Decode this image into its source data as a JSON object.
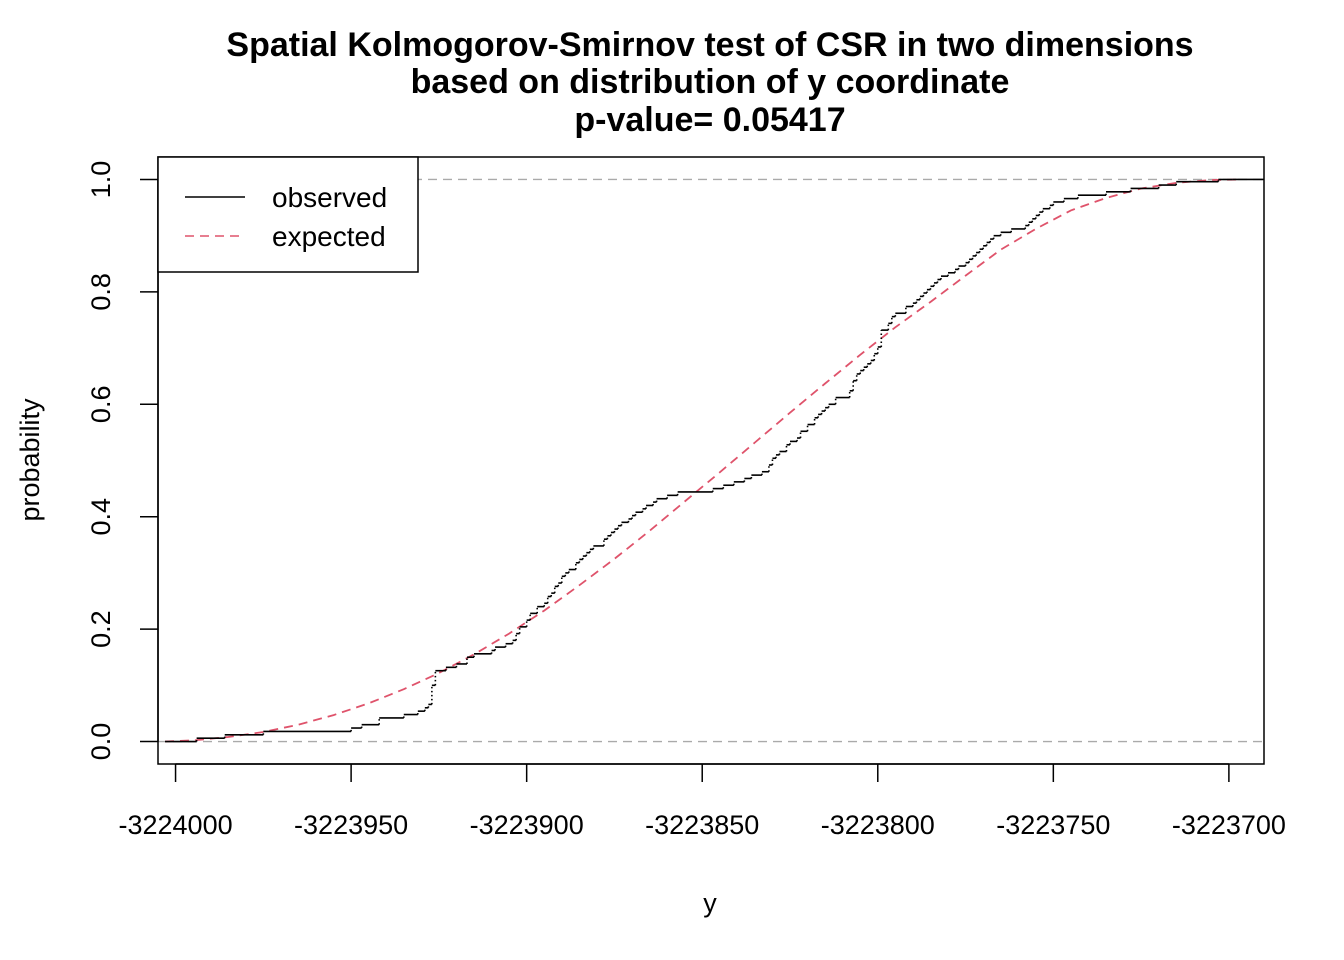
{
  "chart_data": {
    "type": "line",
    "title_lines": [
      "Spatial Kolmogorov-Smirnov test of CSR in two dimensions",
      "based on distribution of y coordinate",
      "p-value= 0.05417"
    ],
    "xlabel": "y",
    "ylabel": "probability",
    "xlim": [
      -3224005,
      -3223690
    ],
    "ylim": [
      -0.04,
      1.04
    ],
    "x_ticks": [
      -3224000,
      -3223950,
      -3223900,
      -3223850,
      -3223800,
      -3223750,
      -3223700
    ],
    "x_tick_labels": [
      "-3224000",
      "-3223950",
      "-3223900",
      "-3223850",
      "-3223800",
      "-3223750",
      "-3223700"
    ],
    "y_ticks": [
      0.0,
      0.2,
      0.4,
      0.6,
      0.8,
      1.0
    ],
    "y_tick_labels": [
      "0.0",
      "0.2",
      "0.4",
      "0.6",
      "0.8",
      "1.0"
    ],
    "reference_lines": [
      0,
      1
    ],
    "colors": {
      "observed": "#000000",
      "expected": "#DF536B",
      "reference": "#AAAAAA"
    },
    "legend": {
      "placement": "top-left",
      "entries": [
        {
          "label": "observed",
          "style": "solid"
        },
        {
          "label": "expected",
          "style": "dashed"
        }
      ]
    },
    "series": [
      {
        "name": "observed",
        "style": "step",
        "x": [
          -3224003,
          -3223994,
          -3223986,
          -3223975,
          -3223950,
          -3223947,
          -3223942,
          -3223935,
          -3223931,
          -3223929,
          -3223928,
          -3223927,
          -3223926,
          -3223923,
          -3223920,
          -3223917,
          -3223915,
          -3223910,
          -3223909,
          -3223906,
          -3223904,
          -3223903,
          -3223902,
          -3223900,
          -3223899,
          -3223897,
          -3223895,
          -3223894,
          -3223893,
          -3223892,
          -3223891,
          -3223890,
          -3223889,
          -3223888,
          -3223886,
          -3223885,
          -3223884,
          -3223883,
          -3223882,
          -3223881,
          -3223878,
          -3223877,
          -3223876,
          -3223875,
          -3223874,
          -3223873,
          -3223871,
          -3223870,
          -3223869,
          -3223867,
          -3223866,
          -3223864,
          -3223863,
          -3223860,
          -3223857,
          -3223847,
          -3223844,
          -3223841,
          -3223838,
          -3223836,
          -3223833,
          -3223831,
          -3223830,
          -3223829,
          -3223828,
          -3223826,
          -3223825,
          -3223823,
          -3223822,
          -3223820,
          -3223818,
          -3223817,
          -3223816,
          -3223815,
          -3223814,
          -3223812,
          -3223808,
          -3223807,
          -3223806,
          -3223805,
          -3223804,
          -3223803,
          -3223802,
          -3223801,
          -3223800,
          -3223799,
          -3223797,
          -3223796,
          -3223795,
          -3223792,
          -3223790,
          -3223789,
          -3223788,
          -3223787,
          -3223786,
          -3223785,
          -3223784,
          -3223783,
          -3223782,
          -3223780,
          -3223778,
          -3223777,
          -3223775,
          -3223774,
          -3223773,
          -3223772,
          -3223771,
          -3223770,
          -3223769,
          -3223768,
          -3223767,
          -3223765,
          -3223762,
          -3223758,
          -3223757,
          -3223756,
          -3223755,
          -3223754,
          -3223753,
          -3223751,
          -3223750,
          -3223747,
          -3223743,
          -3223735,
          -3223728,
          -3223720,
          -3223715,
          -3223703,
          -3223699,
          -3223690
        ],
        "y": [
          0.0,
          0.006,
          0.012,
          0.018,
          0.024,
          0.03,
          0.042,
          0.048,
          0.054,
          0.06,
          0.066,
          0.1,
          0.126,
          0.132,
          0.138,
          0.15,
          0.156,
          0.162,
          0.168,
          0.174,
          0.18,
          0.192,
          0.204,
          0.216,
          0.228,
          0.24,
          0.246,
          0.258,
          0.264,
          0.276,
          0.282,
          0.294,
          0.3,
          0.306,
          0.318,
          0.324,
          0.33,
          0.336,
          0.342,
          0.348,
          0.36,
          0.366,
          0.372,
          0.378,
          0.384,
          0.39,
          0.396,
          0.402,
          0.408,
          0.414,
          0.42,
          0.426,
          0.432,
          0.438,
          0.444,
          0.45,
          0.456,
          0.462,
          0.468,
          0.474,
          0.48,
          0.492,
          0.504,
          0.51,
          0.516,
          0.528,
          0.534,
          0.54,
          0.552,
          0.564,
          0.576,
          0.582,
          0.588,
          0.594,
          0.6,
          0.612,
          0.624,
          0.642,
          0.654,
          0.66,
          0.666,
          0.672,
          0.678,
          0.69,
          0.702,
          0.732,
          0.744,
          0.756,
          0.762,
          0.774,
          0.78,
          0.786,
          0.792,
          0.798,
          0.804,
          0.81,
          0.816,
          0.822,
          0.828,
          0.834,
          0.84,
          0.846,
          0.852,
          0.858,
          0.864,
          0.87,
          0.876,
          0.882,
          0.888,
          0.894,
          0.9,
          0.906,
          0.912,
          0.918,
          0.924,
          0.93,
          0.936,
          0.942,
          0.948,
          0.954,
          0.96,
          0.966,
          0.972,
          0.978,
          0.984,
          0.99,
          0.996,
          1.0,
          1.0,
          1.0
        ]
      },
      {
        "name": "expected",
        "style": "dashed",
        "x": [
          -3224003,
          -3223995,
          -3223985,
          -3223975,
          -3223965,
          -3223955,
          -3223945,
          -3223935,
          -3223925,
          -3223915,
          -3223905,
          -3223895,
          -3223885,
          -3223875,
          -3223865,
          -3223855,
          -3223845,
          -3223835,
          -3223825,
          -3223815,
          -3223805,
          -3223795,
          -3223785,
          -3223775,
          -3223765,
          -3223755,
          -3223745,
          -3223735,
          -3223725,
          -3223715,
          -3223705,
          -3223697
        ],
        "y": [
          0.0,
          0.002,
          0.008,
          0.017,
          0.03,
          0.047,
          0.068,
          0.093,
          0.122,
          0.155,
          0.192,
          0.233,
          0.278,
          0.325,
          0.375,
          0.427,
          0.479,
          0.532,
          0.585,
          0.637,
          0.688,
          0.737,
          0.782,
          0.829,
          0.875,
          0.912,
          0.945,
          0.967,
          0.984,
          0.994,
          0.999,
          1.0
        ]
      }
    ]
  }
}
